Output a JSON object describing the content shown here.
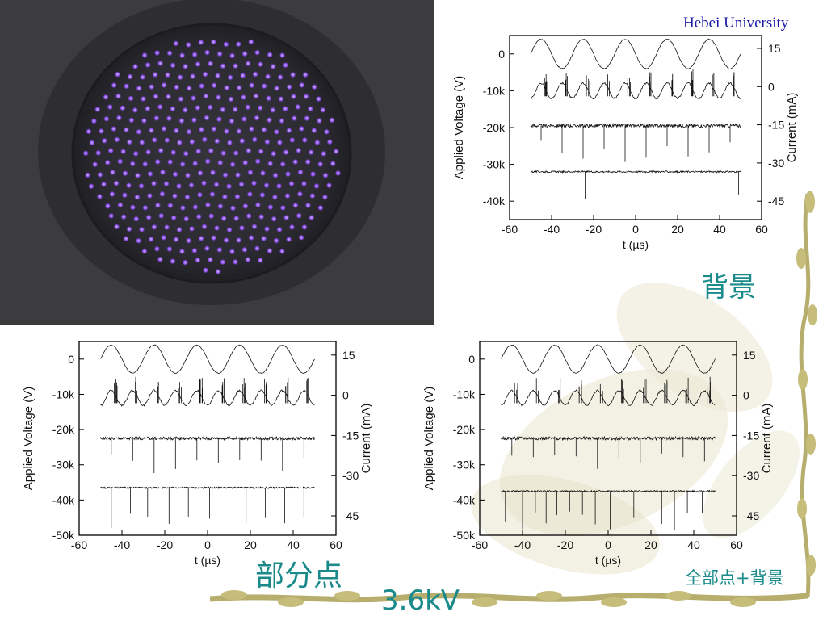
{
  "university": "Hebei University",
  "labels": {
    "background": "背景",
    "partial_spots": "部分点",
    "all_spots_background": "全部点+背景",
    "voltage": "3.6kV"
  },
  "colors": {
    "teal": "#1a8a8a",
    "university_blue": "#1a1aa8",
    "spot_violet": "#9a5cff",
    "photo_bg": "#3a3a3c"
  },
  "photo": {
    "description_icon": "discharge-photo-icon"
  },
  "chart_data": [
    {
      "type": "line",
      "panel": "top-right",
      "xlabel": "t (µs)",
      "ylabel": "Applied Voltage (V)",
      "y2label": "Current (mA)",
      "xlim": [
        -60,
        60
      ],
      "xticks": [
        "-60",
        "-40",
        "-20",
        "0",
        "20",
        "40",
        "60"
      ],
      "ylim": [
        -45000,
        5000
      ],
      "yticks": [
        "0",
        "-10k",
        "-20k",
        "-30k",
        "-40k"
      ],
      "y2ticks": [
        "15",
        "0",
        "-15",
        "-30",
        "-45"
      ],
      "series": [
        {
          "kind": "voltage",
          "offset": 0,
          "amplitude": 4000,
          "period_us": 20
        },
        {
          "kind": "current-1",
          "offset": -10000,
          "spike_us": [
            -43,
            -33,
            -23,
            -13,
            -3,
            7,
            17,
            27,
            37,
            47
          ]
        },
        {
          "kind": "current-2",
          "offset": -19500,
          "spike_us": [
            -45,
            -35,
            -25,
            -15,
            -5,
            5,
            15,
            25,
            35,
            45
          ]
        },
        {
          "kind": "current-3",
          "offset": -32000,
          "spike_us": [
            -24,
            -6,
            49
          ]
        }
      ]
    },
    {
      "type": "line",
      "panel": "bottom-left",
      "xlabel": "t (µs)",
      "ylabel": "Applied Voltage (V)",
      "y2label": "Current (mA)",
      "xlim": [
        -60,
        60
      ],
      "xticks": [
        "-60",
        "-40",
        "-20",
        "0",
        "20",
        "40",
        "60"
      ],
      "ylim": [
        -50000,
        5000
      ],
      "yticks": [
        "0",
        "-10k",
        "-20k",
        "-30k",
        "-40k",
        "-50k"
      ],
      "y2ticks": [
        "15",
        "0",
        "-15",
        "-30",
        "-45"
      ],
      "series": [
        {
          "kind": "voltage",
          "offset": 0,
          "amplitude": 4000,
          "period_us": 20
        },
        {
          "kind": "current-1",
          "offset": -11000,
          "spike_us": [
            -43,
            -33,
            -23,
            -13,
            -3,
            7,
            17,
            27,
            37,
            47
          ]
        },
        {
          "kind": "current-2",
          "offset": -22500,
          "spike_us": [
            -45,
            -35,
            -25,
            -15,
            -5,
            5,
            15,
            25,
            35,
            45
          ]
        },
        {
          "kind": "current-3",
          "offset": -36500,
          "spike_us": [
            -45,
            -36,
            -28,
            -18,
            -9,
            1,
            10,
            18,
            27,
            36,
            45
          ]
        }
      ]
    },
    {
      "type": "line",
      "panel": "bottom-right",
      "xlabel": "t (µs)",
      "ylabel": "Applied Voltage (V)",
      "y2label": "Current (mA)",
      "xlim": [
        -60,
        60
      ],
      "xticks": [
        "-60",
        "-40",
        "-20",
        "0",
        "20",
        "40",
        "60"
      ],
      "ylim": [
        -50000,
        5000
      ],
      "yticks": [
        "0",
        "-10k",
        "-20k",
        "-30k",
        "-40k",
        "-50k"
      ],
      "y2ticks": [
        "15",
        "0",
        "-15",
        "-30",
        "-45"
      ],
      "series": [
        {
          "kind": "voltage",
          "offset": 0,
          "amplitude": 4000,
          "period_us": 20
        },
        {
          "kind": "current-1",
          "offset": -11000,
          "spike_us": [
            -43,
            -33,
            -23,
            -13,
            -3,
            7,
            17,
            27,
            37,
            47
          ]
        },
        {
          "kind": "current-2",
          "offset": -22500,
          "spike_us": [
            -45,
            -35,
            -25,
            -15,
            -5,
            5,
            15,
            25,
            35,
            45
          ]
        },
        {
          "kind": "current-3",
          "offset": -37500,
          "spike_us": [
            -48,
            -44,
            -40,
            -34,
            -29,
            -24,
            -18,
            -12,
            -6,
            1,
            7,
            12,
            19,
            25,
            31,
            37,
            44
          ]
        }
      ]
    }
  ]
}
